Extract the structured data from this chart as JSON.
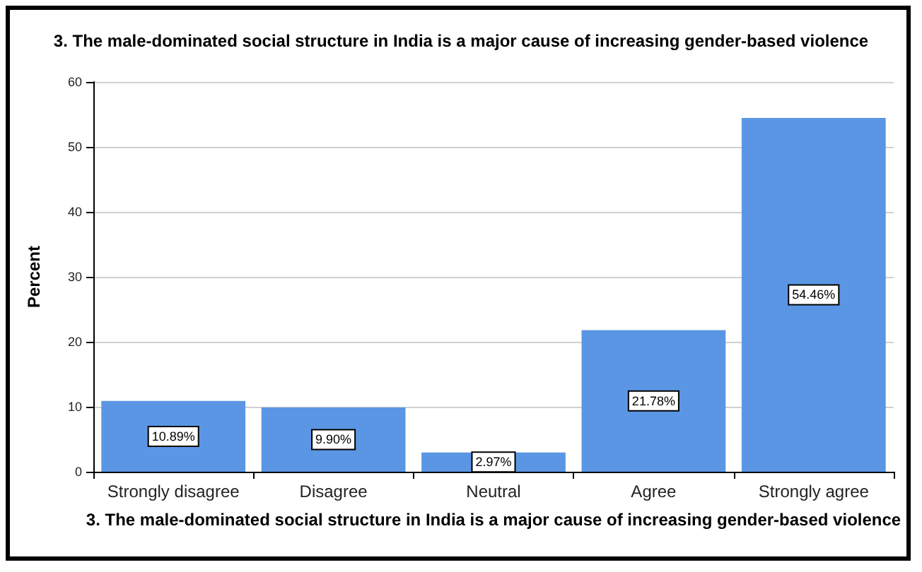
{
  "chart_data": {
    "type": "bar",
    "title": "3. The male-dominated social structure in India is a major cause of increasing gender-based violence",
    "xlabel": "3. The male-dominated social structure in India is a major cause of increasing gender-based violence",
    "ylabel": "Percent",
    "categories": [
      "Strongly disagree",
      "Disagree",
      "Neutral",
      "Agree",
      "Strongly agree"
    ],
    "values": [
      10.89,
      9.9,
      2.97,
      21.78,
      54.46
    ],
    "value_labels": [
      "10.89%",
      "9.90%",
      "2.97%",
      "21.78%",
      "54.46%"
    ],
    "color": "#5b96e4",
    "ylim": [
      0,
      60
    ],
    "yticks": [
      0,
      10,
      20,
      30,
      40,
      50,
      60
    ],
    "grid": "y"
  }
}
